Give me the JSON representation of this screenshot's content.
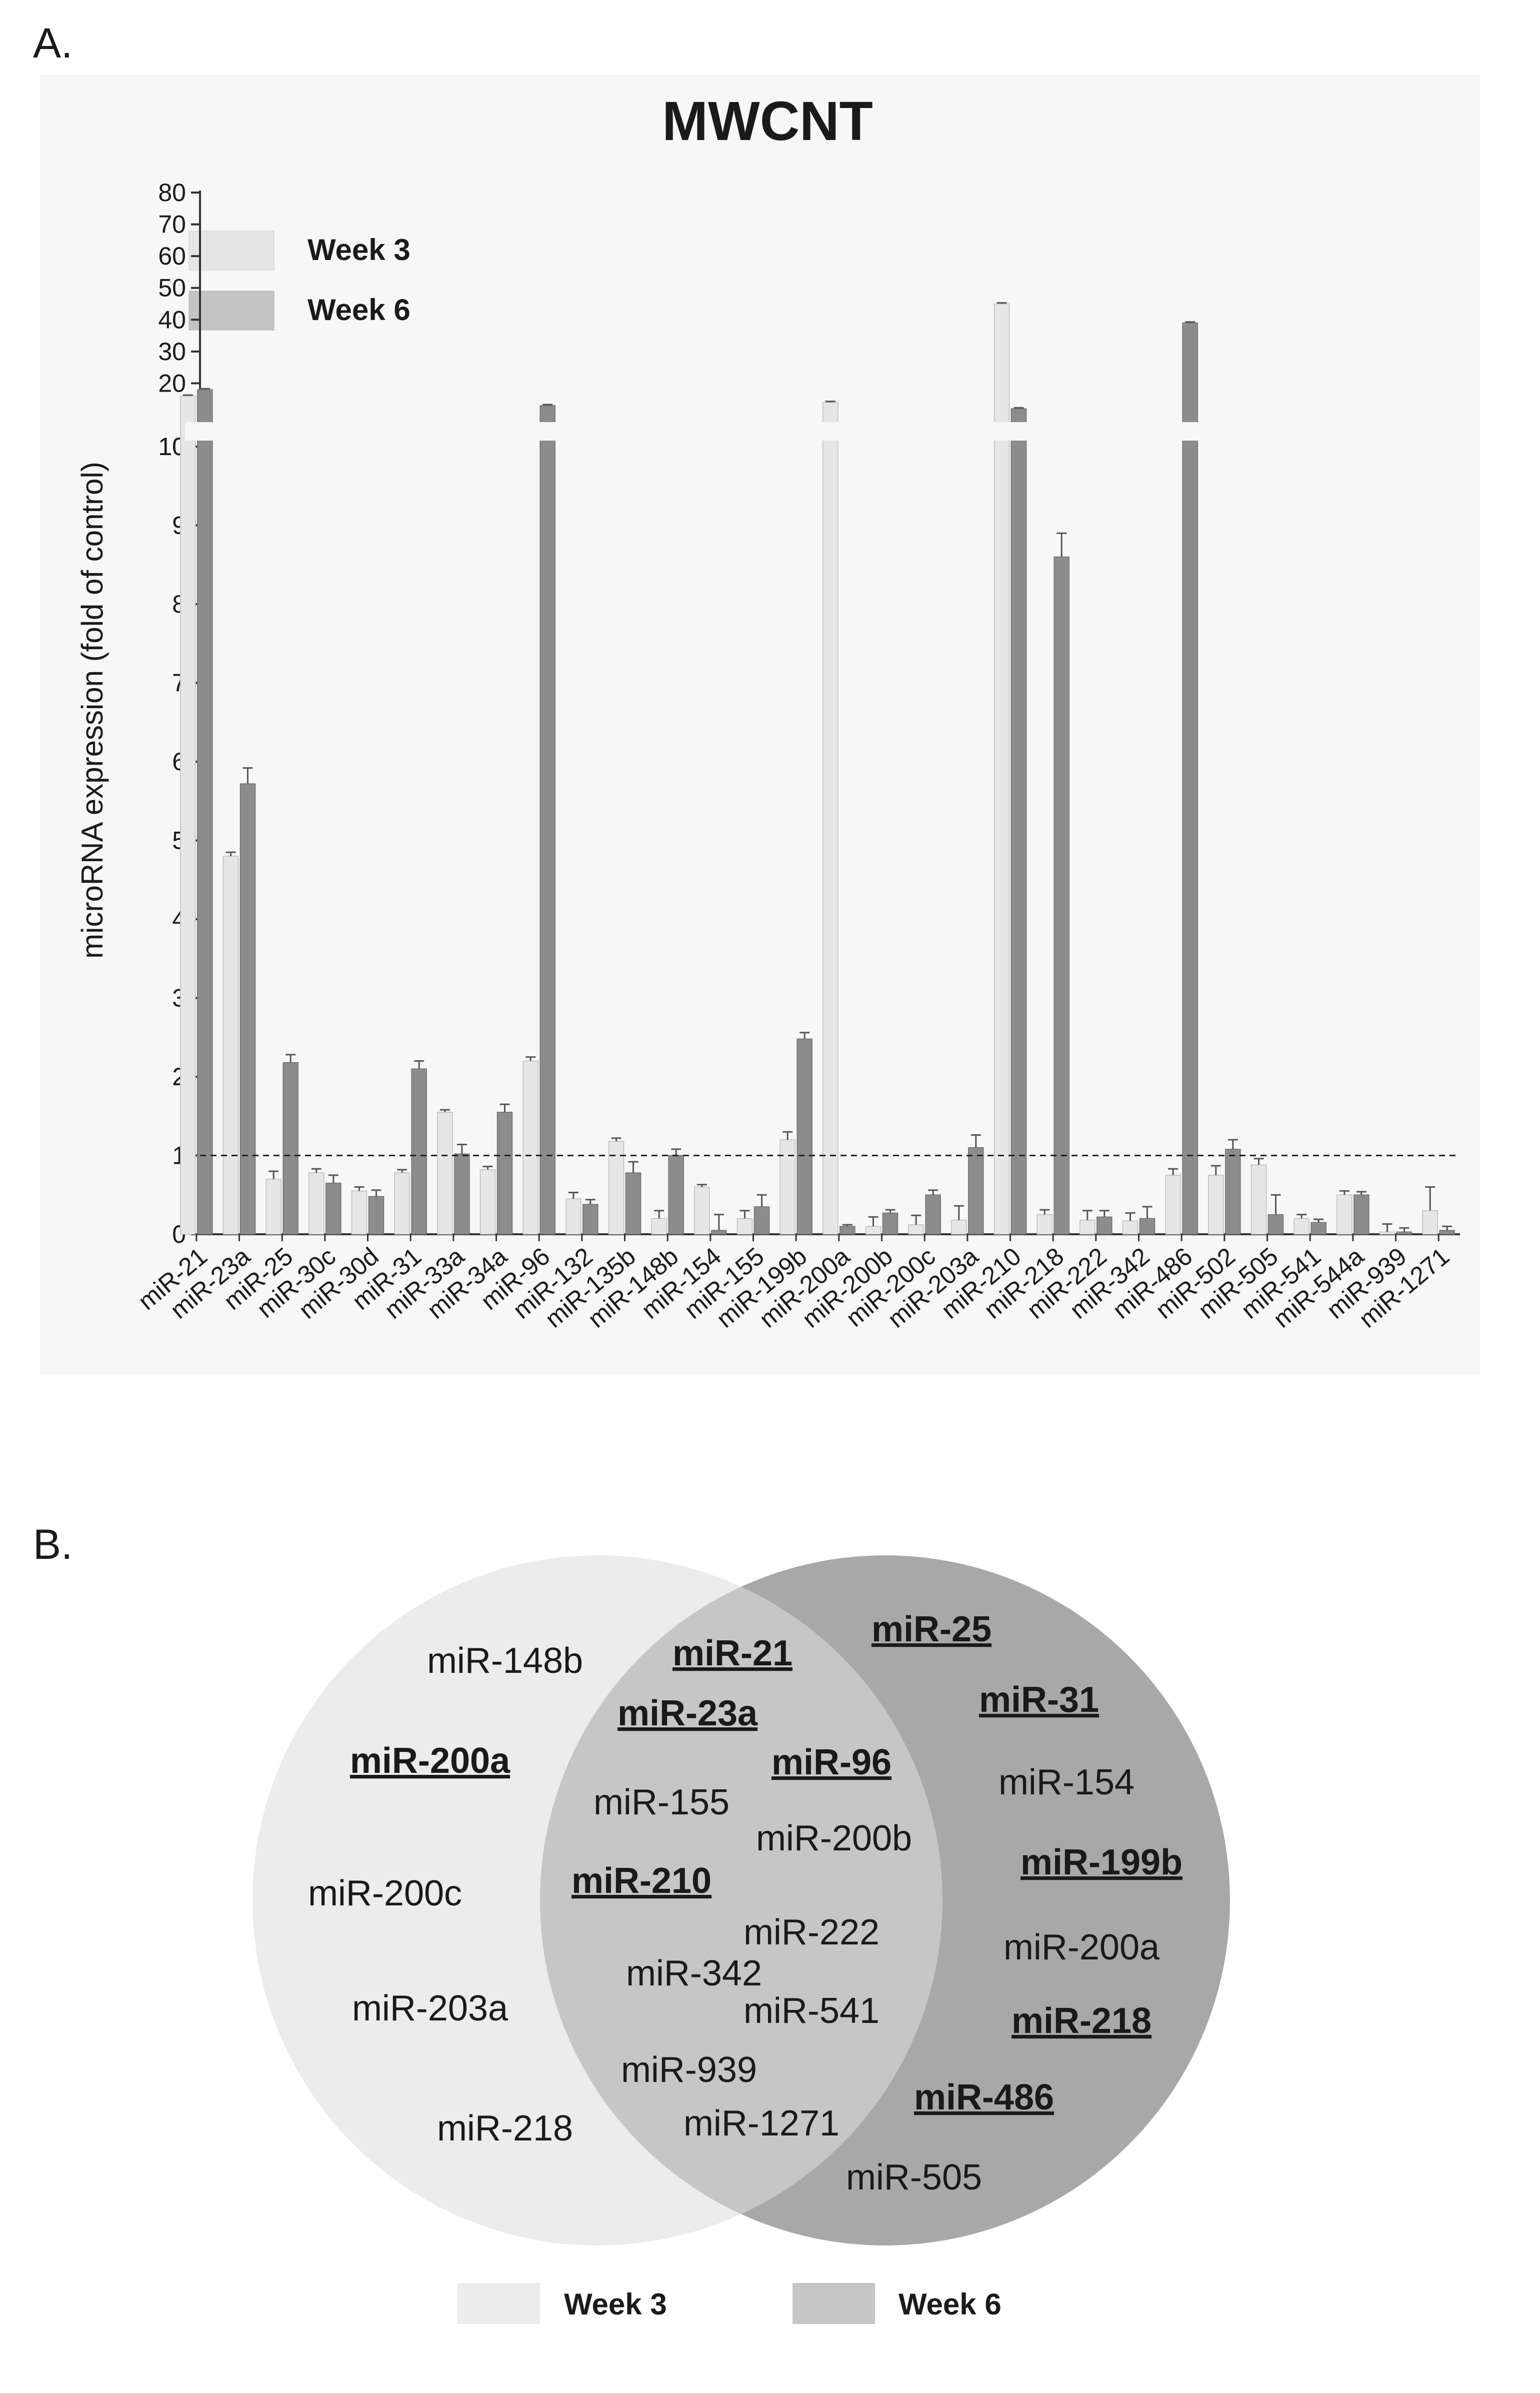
{
  "panels": {
    "a_label": "A.",
    "b_label": "B."
  },
  "colors": {
    "week3": "#e6e6e6",
    "week6": "#8c8c8c",
    "week3_venn": "#ececec",
    "week6_venn": "#a8a8a8",
    "overlap": "#c6c6c6",
    "chart_bg": "#f7f7f7"
  },
  "chart_data": {
    "type": "bar",
    "title": "MWCNT",
    "ylabel": "microRNA expression (fold of control)",
    "xlabel": "",
    "ylim": [
      0,
      80
    ],
    "axis_break": {
      "lower": [
        0,
        10
      ],
      "upper": [
        10,
        80
      ]
    },
    "yticks_lower": [
      "0",
      "1",
      "2",
      "3",
      "4",
      "5",
      "6",
      "7",
      "8",
      "9",
      "10"
    ],
    "yticks_upper": [
      "10",
      "20",
      "30",
      "40",
      "50",
      "60",
      "70",
      "80"
    ],
    "reference_line": 1,
    "legend": [
      "Week 3",
      "Week 6"
    ],
    "categories": [
      "miR-21",
      "miR-23a",
      "miR-25",
      "miR-30c",
      "miR-30d",
      "miR-31",
      "miR-33a",
      "miR-34a",
      "miR-96",
      "miR-132",
      "miR-135b",
      "miR-148b",
      "miR-154",
      "miR-155",
      "miR-199b",
      "miR-200a",
      "miR-200b",
      "miR-200c",
      "miR-203a",
      "miR-210",
      "miR-218",
      "miR-222",
      "miR-342",
      "miR-486",
      "miR-502",
      "miR-505",
      "miR-541",
      "miR-544a",
      "miR-939",
      "miR-1271"
    ],
    "series": [
      {
        "name": "Week 3",
        "values": [
          16,
          4.8,
          0.7,
          0.78,
          0.55,
          0.78,
          1.55,
          0.82,
          2.2,
          0.45,
          1.18,
          0.2,
          0.6,
          0.2,
          1.2,
          14,
          0.1,
          0.12,
          0.18,
          45,
          0.25,
          0.18,
          0.17,
          0.75,
          0.75,
          0.88,
          0.2,
          0.5,
          0.03,
          0.3
        ],
        "errors": [
          0.3,
          0.05,
          0.1,
          0.05,
          0.05,
          0.04,
          0.03,
          0.04,
          0.05,
          0.08,
          0.04,
          0.1,
          0.03,
          0.1,
          0.1,
          0.3,
          0.12,
          0.12,
          0.18,
          0.3,
          0.06,
          0.12,
          0.1,
          0.08,
          0.12,
          0.08,
          0.05,
          0.05,
          0.1,
          0.3
        ]
      },
      {
        "name": "Week 6",
        "values": [
          18,
          5.72,
          2.18,
          0.65,
          0.48,
          2.1,
          1.02,
          1.55,
          13,
          0.38,
          0.78,
          1.0,
          0.05,
          0.35,
          2.48,
          0.1,
          0.27,
          0.5,
          1.1,
          12,
          8.6,
          0.22,
          0.2,
          39,
          1.08,
          0.25,
          0.15,
          0.5,
          0.03,
          0.05
        ],
        "errors": [
          0.3,
          0.2,
          0.1,
          0.1,
          0.08,
          0.1,
          0.12,
          0.1,
          0.3,
          0.06,
          0.14,
          0.08,
          0.2,
          0.15,
          0.08,
          0.02,
          0.04,
          0.06,
          0.16,
          0.3,
          0.3,
          0.08,
          0.15,
          0.3,
          0.12,
          0.25,
          0.04,
          0.04,
          0.05,
          0.05
        ]
      }
    ]
  },
  "venn": {
    "legend": [
      "Week 3",
      "Week 6"
    ],
    "week3_only": [
      {
        "text": "miR-148b",
        "bold": false
      },
      {
        "text": "miR-200a",
        "bold": true
      },
      {
        "text": "miR-200c",
        "bold": false
      },
      {
        "text": "miR-203a",
        "bold": false
      },
      {
        "text": "miR-218",
        "bold": false
      }
    ],
    "overlap": [
      {
        "text": "miR-21",
        "bold": true
      },
      {
        "text": "miR-23a",
        "bold": true
      },
      {
        "text": "miR-96",
        "bold": true
      },
      {
        "text": "miR-155",
        "bold": false
      },
      {
        "text": "miR-200b",
        "bold": false
      },
      {
        "text": "miR-210",
        "bold": true
      },
      {
        "text": "miR-222",
        "bold": false
      },
      {
        "text": "miR-342",
        "bold": false
      },
      {
        "text": "miR-541",
        "bold": false
      },
      {
        "text": "miR-939",
        "bold": false
      },
      {
        "text": "miR-1271",
        "bold": false
      }
    ],
    "week6_only": [
      {
        "text": "miR-25",
        "bold": true
      },
      {
        "text": "miR-31",
        "bold": true
      },
      {
        "text": "miR-154",
        "bold": false
      },
      {
        "text": "miR-199b",
        "bold": true
      },
      {
        "text": "miR-200a",
        "bold": false
      },
      {
        "text": "miR-218",
        "bold": true
      },
      {
        "text": "miR-486",
        "bold": true
      },
      {
        "text": "miR-505",
        "bold": false
      }
    ]
  }
}
